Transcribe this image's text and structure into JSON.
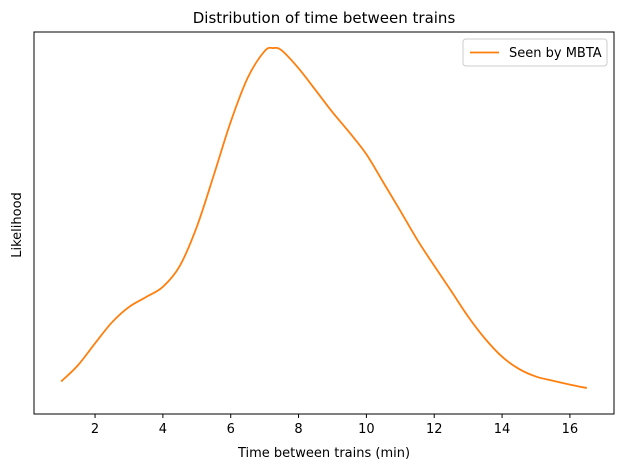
{
  "chart_data": {
    "type": "line",
    "title": "Distribution of time between trains",
    "xlabel": "Time between trains (min)",
    "ylabel": "Likelihood",
    "xlim": [
      0.2,
      17.3
    ],
    "ylim": [
      0,
      1.0
    ],
    "x_ticks": [
      2,
      4,
      6,
      8,
      10,
      12,
      14,
      16
    ],
    "y_ticks_shown": false,
    "grid": false,
    "legend_position": "top-right",
    "series": [
      {
        "name": "Seen by MBTA",
        "color": "#ff7f0e",
        "x": [
          1.0,
          1.5,
          2.0,
          2.5,
          3.0,
          3.5,
          4.0,
          4.5,
          5.0,
          5.5,
          6.0,
          6.5,
          7.0,
          7.25,
          7.5,
          8.0,
          8.5,
          9.0,
          9.5,
          10.0,
          10.5,
          11.0,
          11.5,
          12.0,
          12.5,
          13.0,
          13.5,
          14.0,
          14.5,
          15.0,
          15.5,
          16.0,
          16.5
        ],
        "y": [
          0.085,
          0.128,
          0.185,
          0.24,
          0.28,
          0.306,
          0.333,
          0.388,
          0.49,
          0.625,
          0.765,
          0.88,
          0.95,
          0.958,
          0.952,
          0.905,
          0.848,
          0.79,
          0.737,
          0.68,
          0.606,
          0.532,
          0.456,
          0.388,
          0.322,
          0.255,
          0.197,
          0.15,
          0.118,
          0.098,
          0.087,
          0.077,
          0.068
        ]
      }
    ]
  }
}
